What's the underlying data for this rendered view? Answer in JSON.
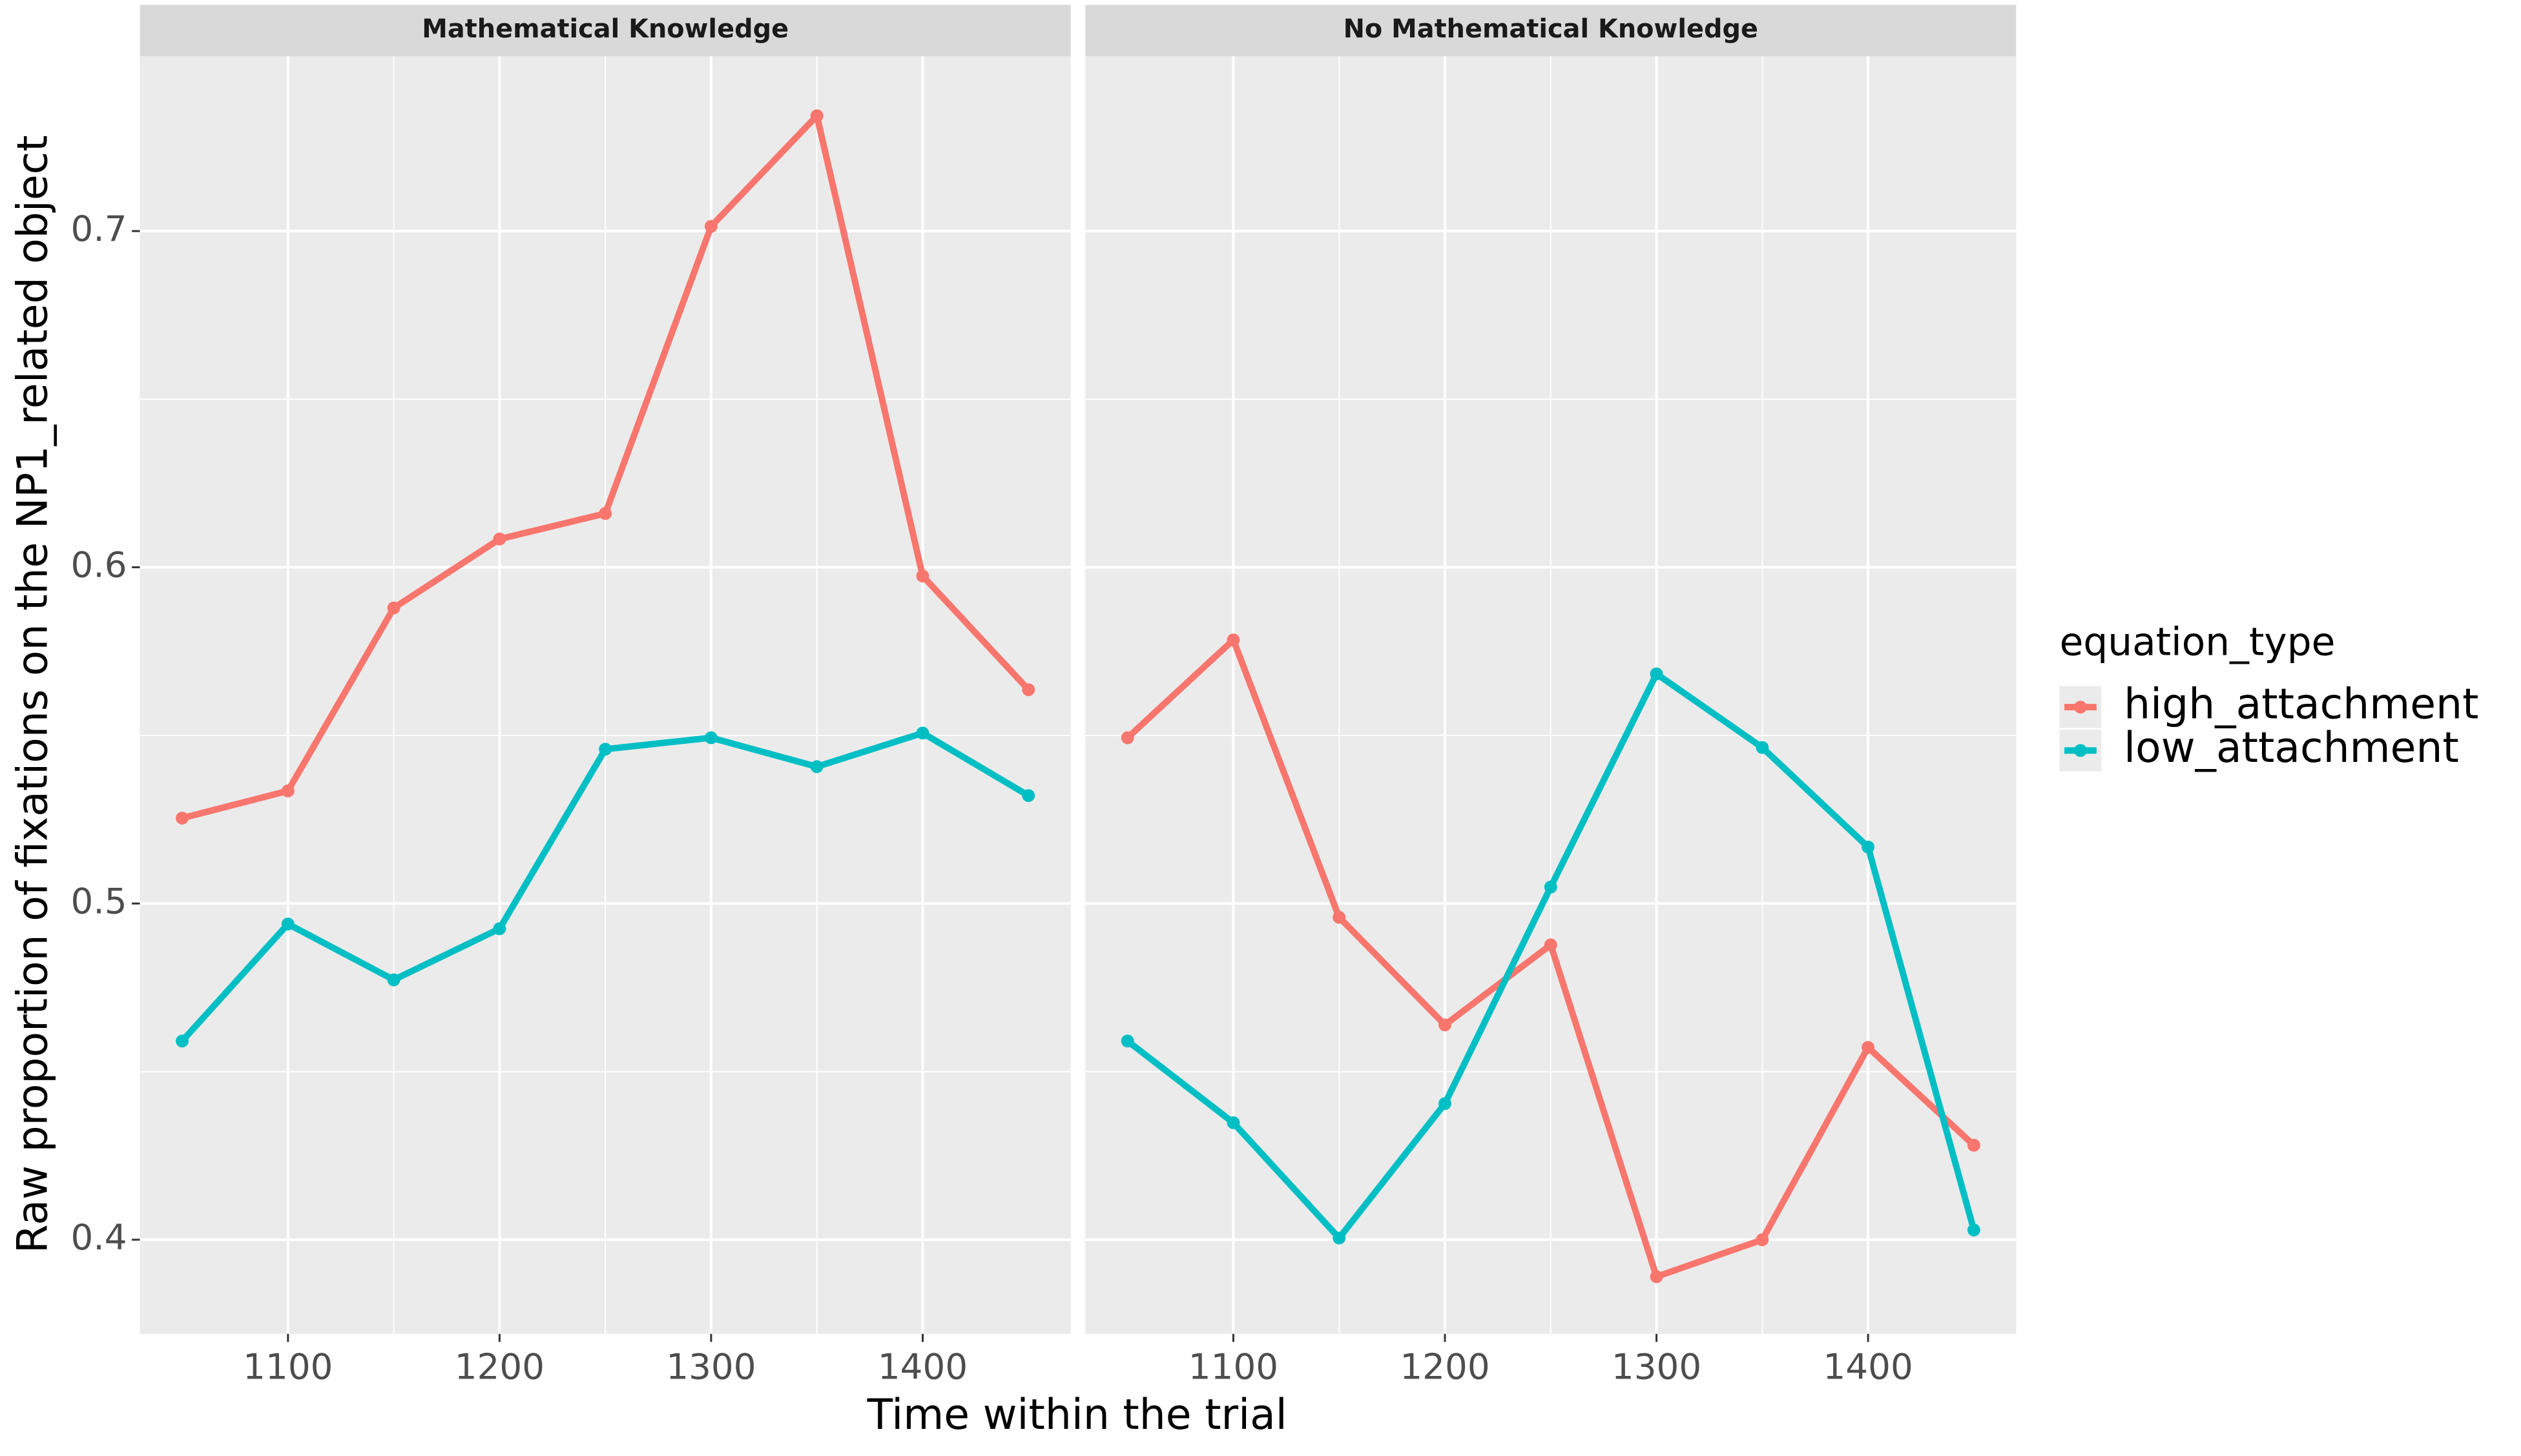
{
  "chart_data": {
    "type": "line",
    "x_label": "Time within the trial",
    "y_label": "Raw proportion of fixations on the NP1_related object",
    "legend_title": "equation_type",
    "xlim": [
      1030,
      1470
    ],
    "ylim": [
      0.372,
      0.752
    ],
    "xticks": [
      1100,
      1200,
      1300,
      1400
    ],
    "yticks": [
      0.4,
      0.5,
      0.6,
      0.7
    ],
    "grid": true,
    "x": [
      1050,
      1100,
      1150,
      1200,
      1250,
      1300,
      1350,
      1400,
      1450
    ],
    "panels": [
      {
        "title": "Mathematical Knowledge",
        "series": [
          {
            "name": "high_attachment",
            "color": "#f8766d",
            "values": [
              0.5254,
              0.5335,
              0.5879,
              0.6084,
              0.616,
              0.7014,
              0.7343,
              0.5974,
              0.5636
            ]
          },
          {
            "name": "low_attachment",
            "color": "#00bfc4",
            "values": [
              0.4591,
              0.4939,
              0.4773,
              0.4925,
              0.5459,
              0.5493,
              0.5407,
              0.5507,
              0.5321
            ]
          }
        ]
      },
      {
        "title": "No Mathematical Knowledge",
        "series": [
          {
            "name": "high_attachment",
            "color": "#f8766d",
            "values": [
              0.5493,
              0.5784,
              0.4959,
              0.4639,
              0.4877,
              0.389,
              0.4,
              0.4572,
              0.4281
            ]
          },
          {
            "name": "low_attachment",
            "color": "#00bfc4",
            "values": [
              0.4591,
              0.4348,
              0.4005,
              0.4405,
              0.5049,
              0.5683,
              0.5464,
              0.5168,
              0.4029
            ]
          }
        ]
      }
    ]
  }
}
